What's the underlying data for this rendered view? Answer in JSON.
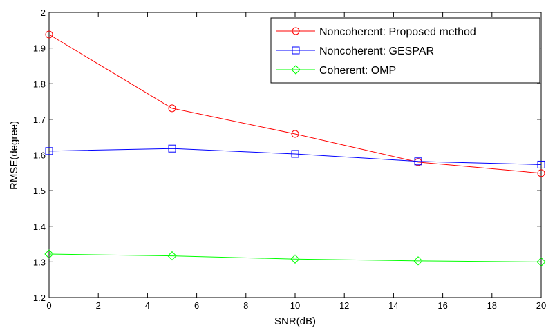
{
  "chart_data": {
    "type": "line",
    "title": "",
    "xlabel": "SNR(dB)",
    "ylabel": "RMSE(degree)",
    "xlim": [
      0,
      20
    ],
    "ylim": [
      1.2,
      2.0
    ],
    "xticks": [
      "0",
      "2",
      "4",
      "6",
      "8",
      "10",
      "12",
      "14",
      "16",
      "18",
      "20"
    ],
    "yticks": [
      "1.2",
      "1.3",
      "1.4",
      "1.5",
      "1.6",
      "1.7",
      "1.8",
      "1.9",
      "2"
    ],
    "x": [
      0,
      5,
      10,
      15,
      20
    ],
    "grid": false,
    "legend_position": "top-right",
    "series": [
      {
        "name": "Noncoherent: Proposed method",
        "values": [
          1.938,
          1.731,
          1.659,
          1.58,
          1.549
        ],
        "color": "#ff0000",
        "marker": "circle"
      },
      {
        "name": "Noncoherent: GESPAR",
        "values": [
          1.611,
          1.618,
          1.603,
          1.582,
          1.573
        ],
        "color": "#0000ff",
        "marker": "square"
      },
      {
        "name": "Coherent: OMP",
        "values": [
          1.322,
          1.317,
          1.308,
          1.303,
          1.3
        ],
        "color": "#00ff00",
        "marker": "diamond"
      }
    ]
  }
}
